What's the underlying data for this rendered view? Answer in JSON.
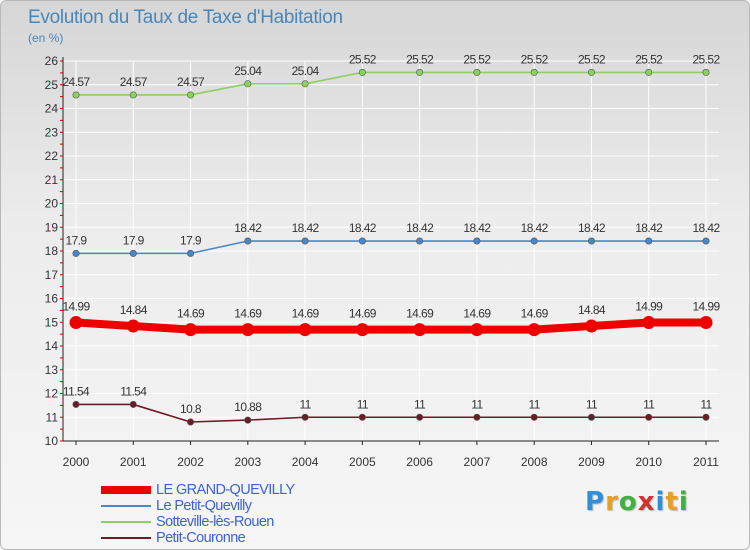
{
  "colors": {
    "grand_quevilly": "#ee0000",
    "petit_quevilly": "#4a86c8",
    "sotteville": "#8cd060",
    "petit_couronne": "#6b1c24",
    "grid": "#ffffff",
    "axis_text": "#333333",
    "title": "#4a86b8",
    "legend_text": "#3d61d6"
  },
  "legend": [
    {
      "label": "LE GRAND-QUEVILLY",
      "series": 0
    },
    {
      "label": "Le Petit-Quevilly",
      "series": 1
    },
    {
      "label": "Sotteville-lès-Rouen",
      "series": 2
    },
    {
      "label": "Petit-Couronne",
      "series": 3
    }
  ],
  "logo": {
    "letters": [
      "P",
      "r",
      "o",
      "x",
      "i",
      "t",
      "i"
    ],
    "colors": [
      "#2f8fd8",
      "#e8a020",
      "#40b040",
      "#d83030",
      "#2f8fd8",
      "#e8a020",
      "#40b040"
    ]
  },
  "chart_data": {
    "type": "line",
    "title": "Evolution du Taux de Taxe d'Habitation",
    "subtitle": "(en %)",
    "xlabel": "",
    "ylabel": "",
    "categories": [
      "2000",
      "2001",
      "2002",
      "2003",
      "2004",
      "2005",
      "2006",
      "2007",
      "2008",
      "2009",
      "2010",
      "2011"
    ],
    "ylim": [
      10,
      26
    ],
    "yticks": [
      10,
      11,
      12,
      13,
      14,
      15,
      16,
      17,
      18,
      19,
      20,
      21,
      22,
      23,
      24,
      25,
      26
    ],
    "grid": true,
    "series": [
      {
        "name": "LE GRAND-QUEVILLY",
        "values": [
          14.99,
          14.84,
          14.69,
          14.69,
          14.69,
          14.69,
          14.69,
          14.69,
          14.69,
          14.84,
          14.99,
          14.99
        ],
        "labels": [
          "14.99",
          "14.84",
          "14.69",
          "14.69",
          "14.69",
          "14.69",
          "14.69",
          "14.69",
          "14.69",
          "14.84",
          "14.99",
          "14.99"
        ]
      },
      {
        "name": "Le Petit-Quevilly",
        "values": [
          17.9,
          17.9,
          17.9,
          18.42,
          18.42,
          18.42,
          18.42,
          18.42,
          18.42,
          18.42,
          18.42,
          18.42
        ],
        "labels": [
          "17.9",
          "17.9",
          "17.9",
          "18.42",
          "18.42",
          "18.42",
          "18.42",
          "18.42",
          "18.42",
          "18.42",
          "18.42",
          "18.42"
        ]
      },
      {
        "name": "Sotteville-lès-Rouen",
        "values": [
          24.57,
          24.57,
          24.57,
          25.04,
          25.04,
          25.52,
          25.52,
          25.52,
          25.52,
          25.52,
          25.52,
          25.52
        ],
        "labels": [
          "24.57",
          "24.57",
          "24.57",
          "25.04",
          "25.04",
          "25.52",
          "25.52",
          "25.52",
          "25.52",
          "25.52",
          "25.52",
          "25.52"
        ]
      },
      {
        "name": "Petit-Couronne",
        "values": [
          11.54,
          11.54,
          10.8,
          10.88,
          11,
          11,
          11,
          11,
          11,
          11,
          11,
          11
        ],
        "labels": [
          "11.54",
          "11.54",
          "10.8",
          "10.88",
          "11",
          "11",
          "11",
          "11",
          "11",
          "11",
          "11",
          "11"
        ]
      }
    ]
  }
}
